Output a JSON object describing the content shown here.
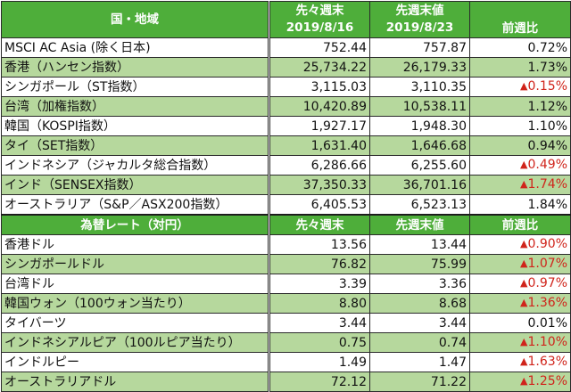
{
  "indices_section": {
    "header": {
      "name": "国・地域",
      "prev_label": "先々週末",
      "prev_date": "2019/8/16",
      "curr_label": "先週末値",
      "curr_date": "2019/8/23",
      "change_label": "前週比"
    },
    "rows": [
      {
        "name": "MSCI AC Asia (除く日本)",
        "prev": "752.44",
        "curr": "757.87",
        "change": "0.72%",
        "negative": false
      },
      {
        "name": "香港（ハンセン指数）",
        "prev": "25,734.22",
        "curr": "26,179.33",
        "change": "1.73%",
        "negative": false
      },
      {
        "name": "シンガポール（ST指数）",
        "prev": "3,115.03",
        "curr": "3,110.35",
        "change": "0.15%",
        "negative": true
      },
      {
        "name": "台湾（加権指数）",
        "prev": "10,420.89",
        "curr": "10,538.11",
        "change": "1.12%",
        "negative": false
      },
      {
        "name": "韓国（KOSPI指数）",
        "prev": "1,927.17",
        "curr": "1,948.30",
        "change": "1.10%",
        "negative": false
      },
      {
        "name": "タイ（SET指数）",
        "prev": "1,631.40",
        "curr": "1,646.68",
        "change": "0.94%",
        "negative": false
      },
      {
        "name": "インドネシア（ジャカルタ総合指数）",
        "prev": "6,286.66",
        "curr": "6,255.60",
        "change": "0.49%",
        "negative": true
      },
      {
        "name": "インド（SENSEX指数）",
        "prev": "37,350.33",
        "curr": "36,701.16",
        "change": "1.74%",
        "negative": true
      },
      {
        "name": "オーストラリア（S&P／ASX200指数）",
        "prev": "6,405.53",
        "curr": "6,523.13",
        "change": "1.84%",
        "negative": false
      }
    ]
  },
  "fx_section": {
    "header": {
      "name": "為替レート（対円）",
      "prev_label": "先々週末",
      "curr_label": "先週末値",
      "change_label": "前週比"
    },
    "rows": [
      {
        "name": "香港ドル",
        "prev": "13.56",
        "curr": "13.44",
        "change": "0.90%",
        "negative": true
      },
      {
        "name": "シンガポールドル",
        "prev": "76.82",
        "curr": "75.99",
        "change": "1.07%",
        "negative": true
      },
      {
        "name": "台湾ドル",
        "prev": "3.39",
        "curr": "3.36",
        "change": "0.97%",
        "negative": true
      },
      {
        "name": "韓国ウォン（100ウォン当たり）",
        "prev": "8.80",
        "curr": "8.68",
        "change": "1.36%",
        "negative": true
      },
      {
        "name": "タイバーツ",
        "prev": "3.44",
        "curr": "3.44",
        "change": "0.01%",
        "negative": false
      },
      {
        "name": "インドネシアルピア（100ルピア当たり）",
        "prev": "0.75",
        "curr": "0.74",
        "change": "1.10%",
        "negative": true
      },
      {
        "name": "インドルピー",
        "prev": "1.49",
        "curr": "1.47",
        "change": "1.63%",
        "negative": true
      },
      {
        "name": "オーストラリアドル",
        "prev": "72.12",
        "curr": "71.22",
        "change": "1.25%",
        "negative": true
      }
    ]
  },
  "symbols": {
    "negative_marker": "▲"
  },
  "colors": {
    "header_green": "#4eae3a",
    "alt_row_green": "#b6d89d",
    "negative_red": "#d0241b",
    "header_text": "#ffffff"
  }
}
